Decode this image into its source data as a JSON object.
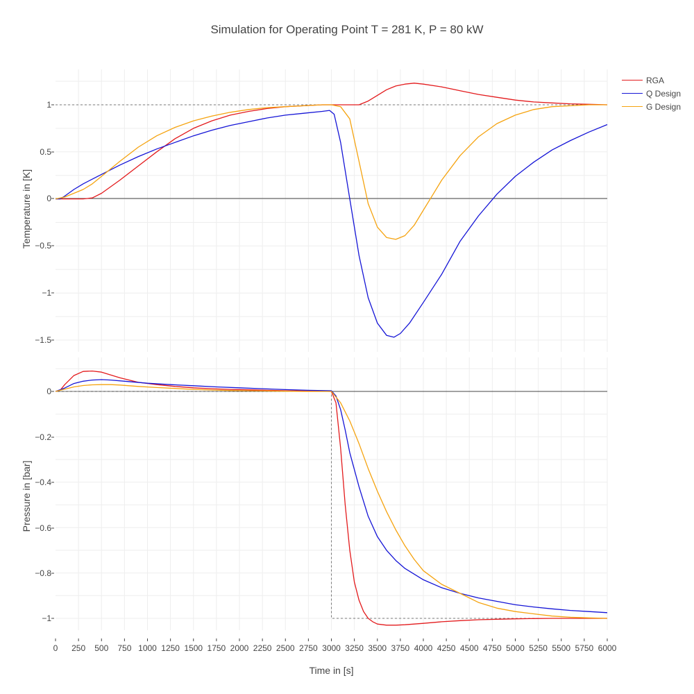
{
  "title": "Simulation for Operating Point T = 281 K, P = 80 kW",
  "chart_data": [
    {
      "type": "line",
      "ylabel": "Temperature in [K]",
      "xlabel": "",
      "xlim": [
        0,
        6000
      ],
      "ylim": [
        -1.6,
        1.4
      ],
      "yticks": [
        1,
        0.5,
        0,
        -0.5,
        -1,
        -1.5
      ],
      "ytick_labels": [
        "1",
        "0.5",
        "0",
        "−0.5",
        "−1",
        "−1.5"
      ],
      "grid": true,
      "reference": {
        "type": "step",
        "value": 1,
        "dashed": true
      },
      "series": [
        {
          "name": "RGA",
          "color": "#e31a1c",
          "x": [
            0,
            100,
            300,
            400,
            500,
            700,
            900,
            1100,
            1300,
            1500,
            1700,
            1900,
            2100,
            2300,
            2500,
            2700,
            2900,
            3000,
            3200,
            3300,
            3400,
            3500,
            3600,
            3700,
            3800,
            3900,
            4000,
            4200,
            4400,
            4600,
            4800,
            5000,
            5200,
            5400,
            5600,
            5800,
            6000
          ],
          "y": [
            0,
            0,
            0,
            0.01,
            0.06,
            0.2,
            0.35,
            0.5,
            0.64,
            0.75,
            0.83,
            0.89,
            0.93,
            0.96,
            0.98,
            0.99,
            1.0,
            1.0,
            1.0,
            1.0,
            1.04,
            1.1,
            1.16,
            1.2,
            1.22,
            1.23,
            1.22,
            1.19,
            1.15,
            1.11,
            1.08,
            1.05,
            1.03,
            1.02,
            1.01,
            1.005,
            1.0
          ]
        },
        {
          "name": "Q Design",
          "color": "#1414d6",
          "x": [
            0,
            50,
            100,
            200,
            300,
            500,
            700,
            900,
            1100,
            1300,
            1500,
            1700,
            1900,
            2100,
            2300,
            2500,
            2700,
            2900,
            2980,
            3030,
            3100,
            3200,
            3300,
            3400,
            3500,
            3600,
            3680,
            3750,
            3850,
            4000,
            4200,
            4400,
            4600,
            4800,
            5000,
            5200,
            5400,
            5600,
            5800,
            6000
          ],
          "y": [
            0,
            0,
            0.03,
            0.1,
            0.16,
            0.26,
            0.36,
            0.45,
            0.53,
            0.6,
            0.67,
            0.73,
            0.78,
            0.82,
            0.86,
            0.89,
            0.91,
            0.93,
            0.94,
            0.9,
            0.6,
            0.0,
            -0.6,
            -1.05,
            -1.32,
            -1.45,
            -1.47,
            -1.43,
            -1.32,
            -1.1,
            -0.8,
            -0.45,
            -0.18,
            0.05,
            0.24,
            0.39,
            0.52,
            0.62,
            0.71,
            0.79
          ]
        },
        {
          "name": "G Design",
          "color": "#f5a30f",
          "x": [
            0,
            100,
            200,
            300,
            400,
            500,
            700,
            900,
            1100,
            1300,
            1500,
            1700,
            1900,
            2100,
            2300,
            2500,
            2700,
            2900,
            3000,
            3100,
            3200,
            3300,
            3400,
            3500,
            3600,
            3700,
            3800,
            3900,
            4000,
            4100,
            4200,
            4400,
            4600,
            4800,
            5000,
            5200,
            5400,
            5600,
            5800,
            6000
          ],
          "y": [
            0,
            0.02,
            0.06,
            0.1,
            0.16,
            0.24,
            0.4,
            0.55,
            0.67,
            0.76,
            0.83,
            0.88,
            0.92,
            0.95,
            0.97,
            0.98,
            0.99,
            1.0,
            1.0,
            0.98,
            0.85,
            0.4,
            -0.05,
            -0.3,
            -0.41,
            -0.43,
            -0.39,
            -0.28,
            -0.12,
            0.04,
            0.2,
            0.46,
            0.66,
            0.8,
            0.89,
            0.95,
            0.98,
            0.99,
            1.0,
            1.0
          ]
        }
      ]
    },
    {
      "type": "line",
      "ylabel": "Pressure in [bar]",
      "xlabel": "Time in [s]",
      "xlim": [
        0,
        6000
      ],
      "ylim": [
        -1.08,
        0.15
      ],
      "yticks": [
        0,
        -0.2,
        -0.4,
        -0.6,
        -0.8,
        -1
      ],
      "ytick_labels": [
        "0",
        "−0.2",
        "−0.4",
        "−0.6",
        "−0.8",
        "−1"
      ],
      "xticks": [
        0,
        250,
        500,
        750,
        1000,
        1250,
        1500,
        1750,
        2000,
        2250,
        2500,
        2750,
        3000,
        3250,
        3500,
        3750,
        4000,
        4250,
        4500,
        4750,
        5000,
        5250,
        5500,
        5750,
        6000
      ],
      "xtick_labels": [
        "0",
        "250",
        "500",
        "750",
        "1000",
        "1250",
        "1500",
        "1750",
        "2000",
        "2250",
        "2500",
        "2750",
        "3000",
        "3250",
        "3500",
        "3750",
        "4000",
        "4250",
        "4500",
        "4750",
        "5000",
        "5250",
        "5500",
        "5750",
        "6000"
      ],
      "grid": true,
      "reference": {
        "type": "step",
        "before": 0,
        "after": -1,
        "at": 3000,
        "dashed": true
      },
      "series": [
        {
          "name": "RGA",
          "color": "#e31a1c",
          "x": [
            0,
            50,
            100,
            200,
            300,
            400,
            500,
            700,
            900,
            1100,
            1300,
            1500,
            1700,
            1900,
            2100,
            2300,
            2500,
            2700,
            2900,
            3000,
            3050,
            3100,
            3150,
            3200,
            3250,
            3300,
            3350,
            3400,
            3450,
            3500,
            3600,
            3700,
            3800,
            4000,
            4200,
            4400,
            4600,
            4800,
            5000,
            5200,
            5400,
            5600,
            5800,
            6000
          ],
          "y": [
            0,
            0.005,
            0.03,
            0.07,
            0.088,
            0.09,
            0.085,
            0.06,
            0.04,
            0.03,
            0.022,
            0.016,
            0.012,
            0.009,
            0.007,
            0.005,
            0.003,
            0.002,
            0.001,
            0.0,
            -0.05,
            -0.25,
            -0.5,
            -0.7,
            -0.84,
            -0.92,
            -0.97,
            -1.0,
            -1.015,
            -1.025,
            -1.03,
            -1.03,
            -1.028,
            -1.022,
            -1.015,
            -1.01,
            -1.006,
            -1.004,
            -1.002,
            -1.001,
            -1.0,
            -1.0,
            -1.0,
            -1.0
          ]
        },
        {
          "name": "Q Design",
          "color": "#1414d6",
          "x": [
            0,
            100,
            200,
            300,
            400,
            500,
            600,
            750,
            1000,
            1250,
            1500,
            1750,
            2000,
            2250,
            2500,
            2750,
            3000,
            3050,
            3100,
            3150,
            3200,
            3300,
            3400,
            3500,
            3600,
            3700,
            3800,
            4000,
            4200,
            4400,
            4600,
            4800,
            5000,
            5200,
            5400,
            5600,
            5800,
            6000
          ],
          "y": [
            0,
            0.015,
            0.035,
            0.045,
            0.05,
            0.052,
            0.05,
            0.045,
            0.036,
            0.03,
            0.025,
            0.02,
            0.016,
            0.012,
            0.008,
            0.005,
            0.003,
            -0.02,
            -0.08,
            -0.17,
            -0.27,
            -0.42,
            -0.55,
            -0.64,
            -0.7,
            -0.745,
            -0.78,
            -0.83,
            -0.865,
            -0.89,
            -0.91,
            -0.925,
            -0.94,
            -0.95,
            -0.958,
            -0.965,
            -0.97,
            -0.975
          ]
        },
        {
          "name": "G Design",
          "color": "#f5a30f",
          "x": [
            0,
            100,
            200,
            300,
            400,
            500,
            600,
            700,
            900,
            1100,
            1300,
            1500,
            1700,
            1900,
            2100,
            2300,
            2500,
            2700,
            2900,
            3000,
            3100,
            3200,
            3300,
            3400,
            3500,
            3600,
            3700,
            3800,
            3900,
            4000,
            4200,
            4400,
            4600,
            4800,
            5000,
            5200,
            5400,
            5600,
            5800,
            6000
          ],
          "y": [
            0,
            0.01,
            0.02,
            0.026,
            0.029,
            0.03,
            0.03,
            0.028,
            0.022,
            0.017,
            0.013,
            0.009,
            0.006,
            0.004,
            0.003,
            0.002,
            0.001,
            0.0,
            0.0,
            0.0,
            -0.05,
            -0.13,
            -0.23,
            -0.34,
            -0.44,
            -0.53,
            -0.61,
            -0.68,
            -0.74,
            -0.79,
            -0.85,
            -0.89,
            -0.93,
            -0.955,
            -0.97,
            -0.98,
            -0.99,
            -0.995,
            -0.998,
            -1.0
          ]
        }
      ]
    }
  ],
  "legend": [
    {
      "label": "RGA",
      "color": "#e31a1c"
    },
    {
      "label": "Q Design",
      "color": "#1414d6"
    },
    {
      "label": "G Design",
      "color": "#f5a30f"
    }
  ]
}
